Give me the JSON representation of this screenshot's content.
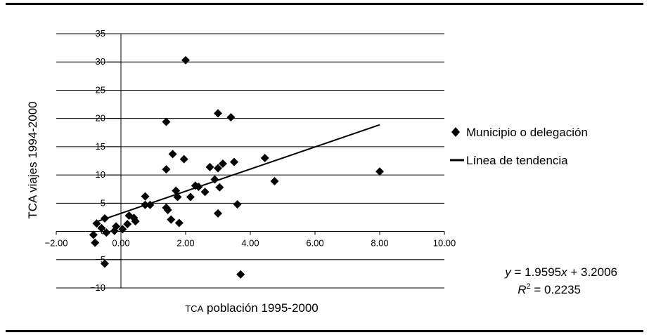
{
  "chart_data": {
    "type": "scatter",
    "xlabel_prefix": "TCA",
    "xlabel_rest": " población 1995-2000",
    "ylabel": "TCA viajes 1994-2000",
    "xlim": [
      -2,
      10
    ],
    "ylim": [
      -10,
      35
    ],
    "x_ticks": [
      -2,
      0,
      2,
      4,
      6,
      8,
      10
    ],
    "x_tick_labels": [
      "−2.00",
      "0.00",
      "2.00",
      "4.00",
      "6.00",
      "8.00",
      "10.00"
    ],
    "y_ticks": [
      -10,
      -5,
      0,
      5,
      10,
      15,
      20,
      25,
      30,
      35
    ],
    "y_tick_labels": [
      "−10",
      "−5",
      "0",
      "5",
      "10",
      "15",
      "20",
      "25",
      "30",
      "35"
    ],
    "grid": true,
    "legend_position": "right",
    "series": [
      {
        "name": "Municipio o delegación",
        "marker": "diamond",
        "points": [
          [
            2.0,
            30.3
          ],
          [
            3.0,
            20.9
          ],
          [
            3.4,
            20.2
          ],
          [
            1.4,
            19.4
          ],
          [
            1.6,
            13.7
          ],
          [
            1.95,
            12.8
          ],
          [
            4.45,
            13.0
          ],
          [
            3.5,
            12.3
          ],
          [
            3.15,
            12.0
          ],
          [
            2.75,
            11.4
          ],
          [
            3.0,
            11.2
          ],
          [
            1.4,
            11.0
          ],
          [
            8.0,
            10.6
          ],
          [
            2.9,
            9.2
          ],
          [
            4.75,
            8.9
          ],
          [
            2.3,
            8.1
          ],
          [
            2.4,
            7.9
          ],
          [
            3.05,
            7.8
          ],
          [
            1.7,
            7.2
          ],
          [
            2.6,
            7.0
          ],
          [
            0.75,
            6.2
          ],
          [
            1.75,
            6.1
          ],
          [
            2.15,
            6.1
          ],
          [
            0.75,
            4.7
          ],
          [
            0.9,
            4.7
          ],
          [
            3.6,
            4.8
          ],
          [
            1.4,
            4.2
          ],
          [
            1.45,
            3.8
          ],
          [
            3.0,
            3.2
          ],
          [
            0.25,
            2.8
          ],
          [
            0.4,
            2.4
          ],
          [
            1.55,
            2.1
          ],
          [
            1.8,
            1.5
          ],
          [
            -0.5,
            2.3
          ],
          [
            0.45,
            1.8
          ],
          [
            0.2,
            1.3
          ],
          [
            -0.75,
            1.4
          ],
          [
            -0.15,
            0.9
          ],
          [
            -0.6,
            0.6
          ],
          [
            0.05,
            0.4
          ],
          [
            -0.2,
            0.1
          ],
          [
            -0.45,
            -0.2
          ],
          [
            -0.85,
            -0.6
          ],
          [
            -0.8,
            -2.0
          ],
          [
            -0.5,
            -5.7
          ],
          [
            3.7,
            -7.6
          ]
        ]
      },
      {
        "name": "Línea de tendencia",
        "type": "line",
        "slope": 1.9595,
        "intercept": 3.2006,
        "x_range": [
          -0.85,
          8.0
        ]
      }
    ],
    "annotations": {
      "eq_y": "y",
      "eq_mid": " = 1.9595",
      "eq_x": "x",
      "eq_end": " + 3.2006",
      "r2_r": "R",
      "r2_sup": "2",
      "r2_end": " = 0.2235"
    }
  },
  "colors": {
    "marker": "#000000",
    "grid": "#000000",
    "line": "#000000"
  }
}
